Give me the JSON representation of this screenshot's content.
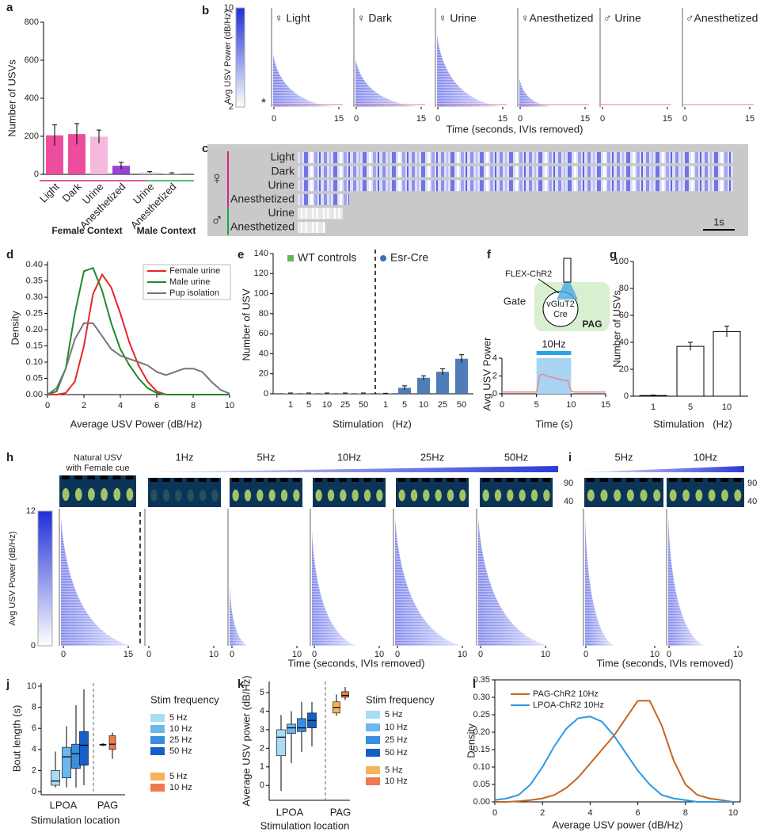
{
  "chart_data": [
    {
      "type": "grouped_bar",
      "label": "a",
      "ylabel": "Number of USVs",
      "ylim": [
        0,
        800
      ],
      "yticks": [
        0,
        200,
        400,
        600,
        800
      ],
      "groups": [
        {
          "name": "Female Context",
          "color": "#d6237f",
          "categories": [
            "Light",
            "Dark",
            "Urine",
            "Anesthetized"
          ],
          "values": [
            205,
            212,
            198,
            45
          ],
          "errors": [
            55,
            55,
            35,
            18
          ],
          "colors": [
            "#ec3a92",
            "#ec3a92",
            "#f6b0da",
            "#8e2fcf"
          ]
        },
        {
          "name": "Male Context",
          "color": "#18a84a",
          "categories": [
            "Urine",
            "Anesthetized"
          ],
          "values": [
            10,
            6
          ],
          "errors": [
            4,
            2
          ],
          "colors": [
            "#cfcfcf",
            "#cfcfcf"
          ]
        }
      ]
    },
    {
      "type": "raster",
      "label": "b",
      "colorbar_label": "Avg USV Power (dB/Hz)",
      "colorbar_ticks": [
        10,
        2
      ],
      "marker": "*",
      "panels": [
        {
          "title": "♀ Light",
          "color": "#d6237f"
        },
        {
          "title": "♀ Dark",
          "color": "#d6237f"
        },
        {
          "title": "♀ Urine",
          "color": "#d6237f"
        },
        {
          "title": "♀Anesthetized",
          "color": "#d6237f"
        },
        {
          "title": "♂ Urine",
          "color": "#18a84a"
        },
        {
          "title": "♂Anesthetized",
          "color": "#18a84a"
        }
      ],
      "xlim": [
        0,
        15
      ],
      "xticks": [
        0,
        15
      ],
      "xlabel": "Time (seconds, IVIs removed)"
    },
    {
      "type": "stripes",
      "label": "c",
      "groups": [
        {
          "symbol": "♀",
          "color": "#d6237f",
          "rows": [
            "Light",
            "Dark",
            "Urine",
            "Anesthetized"
          ]
        },
        {
          "symbol": "♂",
          "color": "#18a84a",
          "rows": [
            "Urine",
            "Anesthetized"
          ]
        }
      ],
      "scalebar": "1s"
    },
    {
      "type": "line",
      "label": "d",
      "xlabel": "Average USV Power (dB/Hz)",
      "ylabel": "Density",
      "legend": "upper right",
      "x": [
        0,
        0.5,
        1,
        1.5,
        2,
        2.5,
        3,
        3.5,
        4,
        4.5,
        5,
        5.5,
        6,
        6.5,
        7,
        7.5,
        8,
        8.5,
        9,
        9.5,
        10
      ],
      "series": [
        {
          "name": "Female urine",
          "color": "#e8262a",
          "values": [
            0,
            0,
            0.005,
            0.04,
            0.15,
            0.31,
            0.37,
            0.33,
            0.25,
            0.16,
            0.09,
            0.04,
            0.01,
            0,
            0,
            0,
            0,
            0,
            0,
            0,
            0
          ]
        },
        {
          "name": "Male urine",
          "color": "#1f8a2a",
          "values": [
            0,
            0.01,
            0.08,
            0.25,
            0.38,
            0.39,
            0.32,
            0.22,
            0.14,
            0.09,
            0.05,
            0.02,
            0.005,
            0,
            0,
            0,
            0,
            0,
            0,
            0,
            0
          ]
        },
        {
          "name": "Pup isolation",
          "color": "#777777",
          "values": [
            0,
            0.02,
            0.08,
            0.17,
            0.22,
            0.22,
            0.18,
            0.14,
            0.12,
            0.11,
            0.1,
            0.09,
            0.07,
            0.06,
            0.07,
            0.08,
            0.08,
            0.07,
            0.04,
            0.015,
            0.003
          ]
        }
      ],
      "xlim": [
        0,
        10
      ],
      "xticks": [
        0,
        2,
        4,
        6,
        8,
        10
      ],
      "ylim": [
        0,
        0.41
      ],
      "yticks": [
        {
          "value": 0,
          "label": "0.00"
        },
        0.05,
        {
          "value": 0.1,
          "label": "0.10"
        },
        0.15,
        {
          "value": 0.2,
          "label": "0.20"
        },
        0.25,
        {
          "value": 0.3,
          "label": "0.30"
        },
        0.35,
        {
          "value": 0.4,
          "label": "0.40"
        }
      ]
    },
    {
      "type": "grouped_bar",
      "label": "e",
      "ylabel": "Number of USV",
      "xlabel": "Stimulation   (Hz)",
      "legend": "top",
      "ylim": [
        0,
        140
      ],
      "yticks": [
        0,
        20,
        40,
        60,
        80,
        100,
        120,
        140
      ],
      "groups": [
        {
          "name": "WT controls",
          "color": "#5cb85c",
          "marker": "square",
          "categories": [
            "1",
            "5",
            "10",
            "25",
            "50"
          ],
          "values": [
            0.5,
            0.5,
            0.5,
            0.5,
            0.5
          ],
          "errors": [
            0.3,
            0.3,
            0.3,
            0.3,
            0.3
          ]
        },
        {
          "name": "Esr-Cre",
          "color": "#3d6fb0",
          "marker": "circle",
          "categories": [
            "1",
            "5",
            "10",
            "25",
            "50"
          ],
          "values": [
            0.3,
            6,
            16,
            22,
            35
          ],
          "errors": [
            0.2,
            2,
            2,
            3,
            4
          ]
        }
      ]
    },
    {
      "type": "trace",
      "label": "f",
      "virus": "FLEX-ChR2",
      "gate": "Gate",
      "cell": [
        "vGluT2",
        "Cre"
      ],
      "region": "PAG",
      "stim_label": "10Hz",
      "stim": [
        5,
        10
      ],
      "ylabel": "Avg USV Power",
      "xlabel": "Time (s)",
      "xlim": [
        0,
        15
      ],
      "xticks": [
        0,
        5,
        10,
        15
      ],
      "ylim": [
        0,
        4
      ],
      "yticks": [
        0,
        2,
        4
      ],
      "color": "#e58a8a",
      "x": [
        0,
        0.5,
        1,
        1.5,
        2,
        2.5,
        3,
        3.5,
        4,
        4.5,
        5,
        5.5,
        6,
        6.5,
        7,
        7.5,
        8,
        8.5,
        9,
        9.5,
        10,
        10.5,
        11,
        11.5,
        12,
        12.5,
        13,
        13.5,
        14,
        14.5,
        15
      ],
      "values": [
        0.2,
        0.2,
        0.2,
        0.2,
        0.2,
        0.2,
        0.2,
        0.2,
        0.2,
        0.2,
        0.2,
        2.1,
        2.2,
        2,
        1.9,
        1.8,
        1.7,
        1.6,
        1.5,
        1.5,
        0.3,
        0.2,
        0.2,
        0.2,
        0.2,
        0.2,
        0.2,
        0.2,
        0.2,
        0.2,
        0.2
      ]
    },
    {
      "type": "bar",
      "label": "g",
      "ylabel": "Number of USVs",
      "xlabel": "Stimulation   (Hz)",
      "categories": [
        "1",
        "5",
        "10"
      ],
      "values": [
        0.5,
        37,
        48
      ],
      "errors": [
        0.3,
        3,
        4
      ],
      "color": "#ffffff",
      "ylim": [
        0,
        100
      ],
      "yticks": [
        0,
        20,
        40,
        60,
        80,
        100
      ]
    },
    {
      "type": "raster",
      "label": "h",
      "colorbar_label": "Avg USV Power (dB/Hz)",
      "colorbar_ticks": [
        12,
        0
      ],
      "freq_ticks": [
        90,
        40
      ],
      "panels": [
        {
          "title": "Natural USV",
          "subtitle": "with Female cue",
          "xlim": [
            0,
            15
          ],
          "xticks": [
            0,
            15
          ]
        },
        {
          "title": "1Hz"
        },
        {
          "title": "5Hz"
        },
        {
          "title": "10Hz"
        },
        {
          "title": "25Hz"
        },
        {
          "title": "50Hz"
        }
      ],
      "xlim": [
        0,
        10
      ],
      "xticks": [
        0,
        10
      ],
      "xlabel": "Time (seconds, IVIs removed)"
    },
    {
      "type": "raster",
      "label": "i",
      "freq_ticks": [
        90,
        40
      ],
      "panels": [
        {
          "title": "5Hz"
        },
        {
          "title": "10Hz"
        }
      ],
      "xlim": [
        0,
        10
      ],
      "xticks": [
        0,
        10
      ],
      "xlabel": "Time (seconds, IVIs removed)"
    },
    {
      "type": "box",
      "label": "j",
      "ylabel": "Bout length (s)",
      "xlabel": "Stimulation location",
      "legend_title": "Stim frequency",
      "ylim": [
        -0.3,
        10.3
      ],
      "yticks": [
        0,
        2,
        4,
        6,
        8,
        10
      ],
      "groups": [
        {
          "name": "LPOA",
          "series": [
            {
              "name": "5 Hz",
              "color": "#a8dcf5",
              "box": [
                0.4,
                0.6,
                1,
                2,
                3.8
              ]
            },
            {
              "name": "10 Hz",
              "color": "#6bb8ee",
              "box": [
                0.4,
                1.3,
                3.3,
                4.2,
                6.2
              ]
            },
            {
              "name": "25 Hz",
              "color": "#3a8ee0",
              "box": [
                0.4,
                2.2,
                3.6,
                4.5,
                8.2
              ]
            },
            {
              "name": "50 Hz",
              "color": "#1560c8",
              "box": [
                0.6,
                2.5,
                4.4,
                5.7,
                9.7
              ]
            }
          ]
        },
        {
          "name": "PAG",
          "series": [
            {
              "name": "5 Hz",
              "color": "#f7b25a",
              "box": [
                4.3,
                4.4,
                4.45,
                4.5,
                4.6
              ]
            },
            {
              "name": "10 Hz",
              "color": "#ef7a4d",
              "box": [
                3.1,
                4,
                4.5,
                5.3,
                5.6
              ]
            }
          ]
        }
      ]
    },
    {
      "type": "box",
      "label": "k",
      "ylabel": "Average USV power (dB/Hz)",
      "xlabel": "Stimulation location",
      "legend_title": "Stim frequency",
      "ylim": [
        -0.8,
        5.6
      ],
      "yticks": [
        0,
        1,
        2,
        3,
        4,
        5
      ],
      "groups": [
        {
          "name": "LPOA",
          "series": [
            {
              "name": "5 Hz",
              "color": "#a8dcf5",
              "box": [
                -0.3,
                1.6,
                2.6,
                3,
                3.8
              ]
            },
            {
              "name": "10 Hz",
              "color": "#6bb8ee",
              "box": [
                1.2,
                2.8,
                3.1,
                3.3,
                4
              ]
            },
            {
              "name": "25 Hz",
              "color": "#3a8ee0",
              "box": [
                1.8,
                2.9,
                3.1,
                3.6,
                4.5
              ]
            },
            {
              "name": "50 Hz",
              "color": "#1560c8",
              "box": [
                2.1,
                3.1,
                3.5,
                3.9,
                4.5
              ]
            }
          ]
        },
        {
          "name": "PAG",
          "series": [
            {
              "name": "5 Hz",
              "color": "#f7b25a",
              "box": [
                3.75,
                3.9,
                4.2,
                4.5,
                4.9
              ]
            },
            {
              "name": "10 Hz",
              "color": "#ef7a4d",
              "box": [
                4.6,
                4.75,
                4.85,
                5.05,
                5.3
              ]
            }
          ]
        }
      ]
    },
    {
      "type": "line",
      "label": "l",
      "xlabel": "Average USV power (dB/Hz)",
      "ylabel": "Density",
      "legend": "upper left",
      "x": [
        0,
        0.5,
        1,
        1.5,
        2,
        2.5,
        3,
        3.5,
        4,
        4.5,
        5,
        5.5,
        6,
        6.5,
        7,
        7.5,
        8,
        8.5,
        9,
        9.5,
        10
      ],
      "series": [
        {
          "name": "PAG-ChR2 10Hz",
          "color": "#c8641e",
          "values": [
            0,
            0,
            0.002,
            0.005,
            0.01,
            0.02,
            0.04,
            0.07,
            0.11,
            0.15,
            0.19,
            0.24,
            0.29,
            0.29,
            0.22,
            0.12,
            0.05,
            0.02,
            0.01,
            0.005,
            0
          ]
        },
        {
          "name": "LPOA-ChR2 10Hz",
          "color": "#2a9ae8",
          "values": [
            0.005,
            0.01,
            0.02,
            0.05,
            0.1,
            0.16,
            0.21,
            0.24,
            0.245,
            0.23,
            0.19,
            0.14,
            0.09,
            0.05,
            0.02,
            0.01,
            0.005,
            0,
            0,
            0,
            0
          ]
        }
      ],
      "xlim": [
        0,
        10.3
      ],
      "xticks": [
        0,
        2,
        4,
        6,
        8,
        10
      ],
      "ylim": [
        0,
        0.35
      ],
      "yticks": [
        {
          "value": 0,
          "label": "0.00"
        },
        0.05,
        {
          "value": 0.1,
          "label": "0.10"
        },
        0.15,
        {
          "value": 0.2,
          "label": "0.20"
        },
        0.25,
        {
          "value": 0.3,
          "label": "0.30"
        },
        0.35
      ]
    }
  ]
}
